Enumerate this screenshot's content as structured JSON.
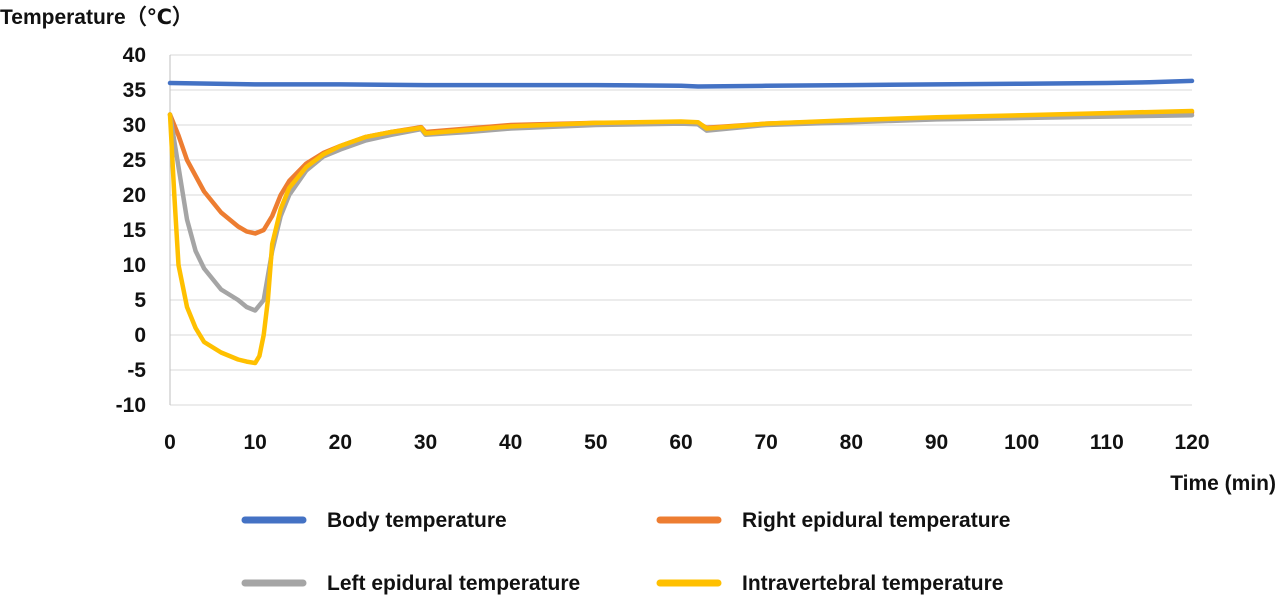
{
  "chart_data": {
    "type": "line",
    "ylabel": "Temperature（℃）",
    "xlabel": "Time (min)",
    "xlim": [
      0,
      120
    ],
    "ylim": [
      -10,
      40
    ],
    "xticks": [
      0,
      10,
      20,
      30,
      40,
      50,
      60,
      70,
      80,
      90,
      100,
      110,
      120
    ],
    "yticks": [
      -10,
      -5,
      0,
      5,
      10,
      15,
      20,
      25,
      30,
      35,
      40
    ],
    "grid": "horizontal",
    "legend_position": "bottom",
    "series": [
      {
        "name": "Body temperature",
        "color": "#4472C4",
        "x": [
          0,
          10,
          20,
          30,
          40,
          50,
          60,
          62,
          70,
          80,
          90,
          100,
          110,
          115,
          120
        ],
        "y": [
          36.0,
          35.8,
          35.8,
          35.7,
          35.7,
          35.7,
          35.6,
          35.5,
          35.6,
          35.7,
          35.8,
          35.9,
          36.0,
          36.1,
          36.3
        ]
      },
      {
        "name": "Right epidural temperature",
        "color": "#ED7D31",
        "x": [
          0,
          1,
          2,
          4,
          6,
          8,
          9,
          10,
          11,
          12,
          13,
          14,
          16,
          18,
          20,
          23,
          26,
          29,
          29.5,
          30,
          35,
          40,
          50,
          60,
          62,
          63,
          70,
          80,
          90,
          100,
          110,
          120
        ],
        "y": [
          31.5,
          28.5,
          25.0,
          20.5,
          17.5,
          15.5,
          14.8,
          14.5,
          15.0,
          17.0,
          20.0,
          22.0,
          24.5,
          26.0,
          27.0,
          28.3,
          29.0,
          29.6,
          29.7,
          29.0,
          29.5,
          30.0,
          30.3,
          30.4,
          30.3,
          29.6,
          30.2,
          30.6,
          31.0,
          31.3,
          31.6,
          31.8
        ]
      },
      {
        "name": "Left epidural temperature",
        "color": "#A5A5A5",
        "x": [
          0,
          1,
          2,
          3,
          4,
          6,
          8,
          9,
          10,
          11,
          12,
          13,
          14,
          16,
          18,
          20,
          23,
          26,
          29,
          29.5,
          30,
          35,
          40,
          50,
          60,
          62,
          63,
          70,
          80,
          90,
          100,
          110,
          120
        ],
        "y": [
          31.5,
          24.0,
          16.5,
          12.0,
          9.5,
          6.5,
          5.0,
          4.0,
          3.5,
          5.0,
          12.0,
          17.0,
          20.0,
          23.5,
          25.5,
          26.5,
          27.8,
          28.6,
          29.3,
          29.4,
          28.6,
          29.0,
          29.5,
          30.0,
          30.2,
          30.1,
          29.2,
          30.0,
          30.4,
          30.8,
          31.0,
          31.2,
          31.4
        ]
      },
      {
        "name": "Intravertebral temperature",
        "color": "#FFC000",
        "x": [
          0,
          0.5,
          1,
          2,
          3,
          4,
          6,
          8,
          9,
          10,
          10.5,
          11,
          11.5,
          12,
          13,
          14,
          16,
          18,
          20,
          23,
          26,
          29,
          29.5,
          30,
          35,
          40,
          50,
          60,
          62,
          63,
          70,
          80,
          90,
          100,
          110,
          120
        ],
        "y": [
          31.5,
          20.0,
          10.0,
          4.0,
          1.0,
          -1.0,
          -2.5,
          -3.5,
          -3.8,
          -4.0,
          -3.0,
          0.0,
          5.0,
          13.0,
          18.0,
          21.0,
          24.0,
          25.8,
          27.0,
          28.3,
          29.0,
          29.5,
          29.6,
          28.8,
          29.3,
          29.8,
          30.3,
          30.5,
          30.4,
          29.5,
          30.2,
          30.7,
          31.1,
          31.4,
          31.7,
          32.0
        ]
      }
    ]
  }
}
